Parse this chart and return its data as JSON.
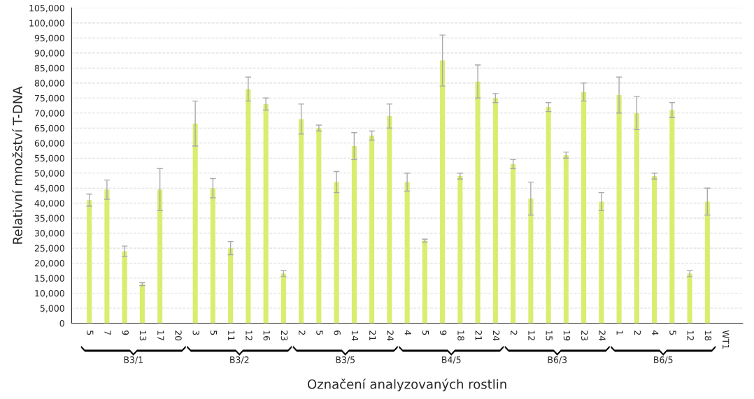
{
  "chart_data": {
    "type": "bar",
    "xlabel": "Označení analyzovaných rostlin",
    "ylabel": "Relativní množství T-DNA",
    "categories": [
      "5",
      "7",
      "9",
      "13",
      "17",
      "20",
      "3",
      "5",
      "11",
      "12",
      "16",
      "23",
      "2",
      "5",
      "6",
      "14",
      "21",
      "24",
      "4",
      "5",
      "9",
      "18",
      "21",
      "24",
      "2",
      "12",
      "15",
      "19",
      "23",
      "24",
      "1",
      "2",
      "4",
      "5",
      "12",
      "18",
      "WT1"
    ],
    "values": [
      41000,
      44500,
      24000,
      13000,
      44500,
      0,
      66500,
      45000,
      25000,
      78000,
      73000,
      16500,
      68000,
      65000,
      47000,
      59000,
      62500,
      69000,
      47000,
      27500,
      87500,
      49000,
      80500,
      75000,
      53000,
      41500,
      72000,
      56000,
      77000,
      40500,
      76000,
      70000,
      49000,
      71000,
      16500,
      40500,
      0
    ],
    "errors": [
      2000,
      3200,
      1700,
      500,
      7000,
      null,
      7500,
      3200,
      2200,
      4000,
      2000,
      1000,
      5000,
      1000,
      3500,
      4500,
      1500,
      4000,
      3000,
      500,
      8500,
      1000,
      5500,
      1500,
      1500,
      5500,
      1500,
      1000,
      3000,
      3000,
      6000,
      5500,
      1000,
      2500,
      1000,
      4500,
      null
    ],
    "color": "#d7ee6e",
    "annotations": [
      "B3/1",
      "B3/2",
      "B3/5",
      "B4/5",
      "B6/3",
      "B6/5"
    ],
    "ylim": [
      0,
      105000
    ],
    "yticks": [
      {
        "value": 0,
        "label": "0"
      },
      {
        "value": 5000,
        "label": "5,000"
      },
      {
        "value": 10000,
        "label": "10,000"
      },
      {
        "value": 15000,
        "label": "15,000"
      },
      {
        "value": 20000,
        "label": "20,000"
      },
      {
        "value": 25000,
        "label": "25,000"
      },
      {
        "value": 30000,
        "label": "30,000"
      },
      {
        "value": 35000,
        "label": "35,000"
      },
      {
        "value": 40000,
        "label": "40,000"
      },
      {
        "value": 45000,
        "label": "45,000"
      },
      {
        "value": 50000,
        "label": "50,000"
      },
      {
        "value": 55000,
        "label": "55,000"
      },
      {
        "value": 60000,
        "label": "60,000"
      },
      {
        "value": 65000,
        "label": "65,000"
      },
      {
        "value": 70000,
        "label": "70,000"
      },
      {
        "value": 75000,
        "label": "75,000"
      },
      {
        "value": 80000,
        "label": "80,000"
      },
      {
        "value": 85000,
        "label": "85,000"
      },
      {
        "value": 90000,
        "label": "90,000"
      },
      {
        "value": 95000,
        "label": "95,000"
      },
      {
        "value": 100000,
        "label": "100,000"
      },
      {
        "value": 105000,
        "label": "105,000"
      }
    ],
    "grid": "y"
  }
}
